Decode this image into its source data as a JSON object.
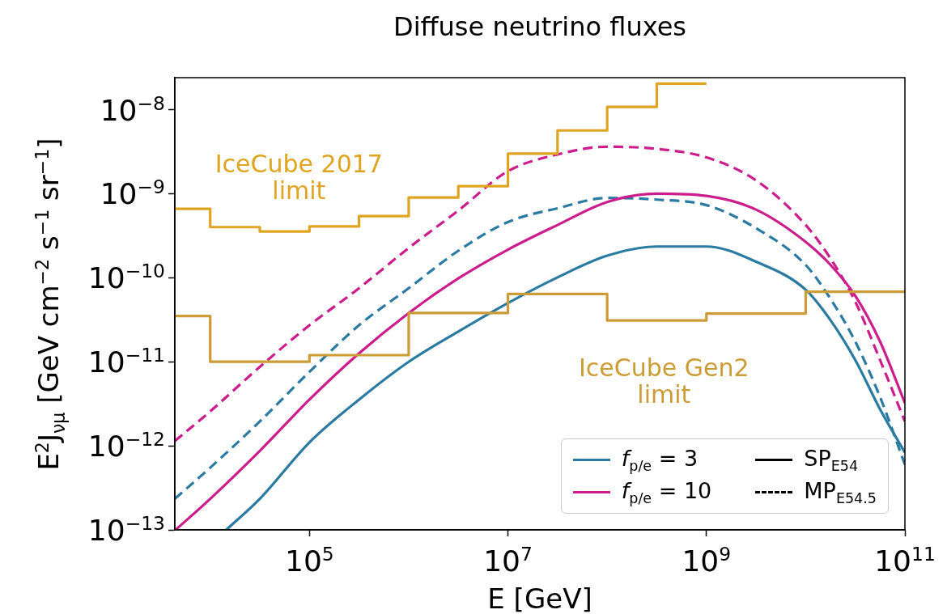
{
  "chart_data": {
    "type": "line",
    "title": "Diffuse neutrino fluxes",
    "xlabel": "E [GeV]",
    "ylabel": "E$^{2}$J$_{νμ}$ [GeV cm$^{−2}$ s$^{−1}$ sr$^{−1}$]",
    "log": "xy",
    "xlim": [
      4400,
      100000000000.0
    ],
    "ylim": [
      1e-13,
      2.4e-08
    ],
    "xticks": [
      {
        "value": 100000.0,
        "label": "10$^{5}$"
      },
      {
        "value": 10000000.0,
        "label": "10$^{7}$"
      },
      {
        "value": 1000000000.0,
        "label": "10$^{9}$"
      },
      {
        "value": 100000000000.0,
        "label": "10$^{11}$"
      }
    ],
    "yticks": [
      {
        "value": 1e-13,
        "label": "10$^{−13}$"
      },
      {
        "value": 1e-12,
        "label": "10$^{−12}$"
      },
      {
        "value": 1e-11,
        "label": "10$^{−11}$"
      },
      {
        "value": 1e-10,
        "label": "10$^{−10}$"
      },
      {
        "value": 1e-09,
        "label": "10$^{−9}$"
      },
      {
        "value": 1e-08,
        "label": "10$^{−8}$"
      }
    ],
    "grid": false,
    "legend": "bottom right",
    "series": [
      {
        "type": "step",
        "color": "#e0a520",
        "x": [
          4400,
          10000.0,
          31600.0,
          100000.0,
          316000.0,
          1000000.0,
          3160000.0,
          10000000.0,
          31600000.0,
          100000000.0,
          316000000.0,
          1000000000.0
        ],
        "values": [
          6.6e-10,
          4e-10,
          3.55e-10,
          4.07e-10,
          5.4e-10,
          9e-10,
          1.23e-09,
          3e-09,
          5.65e-09,
          1.08e-08,
          2.04e-08,
          2.04e-08
        ]
      },
      {
        "type": "step",
        "color": "#cc9c36",
        "x": [
          4400,
          10000.0,
          100000.0,
          1000000.0,
          10000000.0,
          100000000.0,
          1000000000.0,
          10000000000.0,
          100000000000.0
        ],
        "values": [
          3.5e-11,
          1e-11,
          1.2e-11,
          3.8e-11,
          6.4e-11,
          3.1e-11,
          3.75e-11,
          6.8e-11,
          6.8e-11
        ]
      },
      {
        "name": "f$_{p/e}$ = 3",
        "color": "#2a7aa1",
        "line_style": "solid",
        "x": [
          14500.0,
          31600.0,
          100000.0,
          316000.0,
          1000000.0,
          3160000.0,
          10000000.0,
          31600000.0,
          100000000.0,
          316000000.0,
          1000000000.0,
          3160000000.0,
          10000000000.0,
          17800000000.0,
          31600000000.0,
          56200000000.0,
          100000000000.0
        ],
        "values": [
          1e-13,
          2.34e-13,
          1.1e-12,
          3.55e-12,
          1e-11,
          2.29e-11,
          5e-11,
          1.01e-10,
          1.83e-10,
          2.35e-10,
          2.35e-10,
          1.55e-10,
          7.2e-11,
          3.12e-11,
          1.05e-11,
          2.72e-12,
          8.3e-13
        ]
      },
      {
        "name": "f$_{p/e}$ = 10",
        "color": "#cc1d8c",
        "line_style": "solid",
        "x": [
          4470,
          10000.0,
          31600.0,
          100000.0,
          316000.0,
          1000000.0,
          3160000.0,
          10000000.0,
          31600000.0,
          100000000.0,
          316000000.0,
          1000000000.0,
          3160000000.0,
          10000000000.0,
          17800000000.0,
          31600000000.0,
          56200000000.0,
          100000000000.0
        ],
        "values": [
          1e-13,
          2.34e-13,
          8.7e-13,
          3.55e-12,
          1.26e-11,
          3.8e-11,
          9.8e-11,
          2.16e-10,
          4.24e-10,
          7.96e-10,
          1e-09,
          9.4e-10,
          6.46e-10,
          2.67e-10,
          1.42e-10,
          6.1e-11,
          1.74e-11,
          3.24e-12
        ]
      },
      {
        "color": "#2a7aa1",
        "line_style": "dashed",
        "x": [
          4400,
          10000.0,
          31600.0,
          100000.0,
          316000.0,
          1000000.0,
          3160000.0,
          10000000.0,
          31600000.0,
          100000000.0,
          316000000.0,
          1000000000.0,
          3160000000.0,
          10000000000.0,
          17800000000.0,
          31600000000.0,
          56200000000.0,
          100000000000.0
        ],
        "values": [
          2.34e-13,
          5.5e-13,
          1.95e-12,
          7.6e-12,
          2.72e-11,
          7.5e-11,
          2.09e-10,
          4.6e-10,
          6.7e-10,
          8.9e-10,
          8.5e-10,
          7.3e-10,
          3.89e-10,
          1.42e-10,
          5.6e-11,
          1.74e-11,
          3.8e-12,
          6e-13
        ]
      },
      {
        "color": "#cc1d8c",
        "line_style": "dashed",
        "x": [
          4400,
          10000.0,
          31600.0,
          100000.0,
          316000.0,
          1000000.0,
          3160000.0,
          10000000.0,
          31600000.0,
          100000000.0,
          316000000.0,
          1000000000.0,
          3160000000.0,
          10000000000.0,
          17800000000.0,
          31600000000.0,
          56200000000.0,
          100000000000.0
        ],
        "values": [
          1.14e-12,
          2.57e-12,
          8.7e-12,
          2.72e-11,
          7.5e-11,
          2.26e-10,
          6.3e-10,
          1.85e-09,
          2.93e-09,
          3.62e-09,
          3.41e-09,
          2.7e-09,
          1.44e-09,
          4.24e-10,
          1.69e-10,
          5.2e-11,
          1.05e-11,
          1.95e-12
        ]
      }
    ],
    "annotations": [
      "IceCube 2017\nlimit",
      "IceCube Gen2\nlimit",
      "SP$_{E54}$",
      "MP$_{E54.5}$"
    ]
  }
}
